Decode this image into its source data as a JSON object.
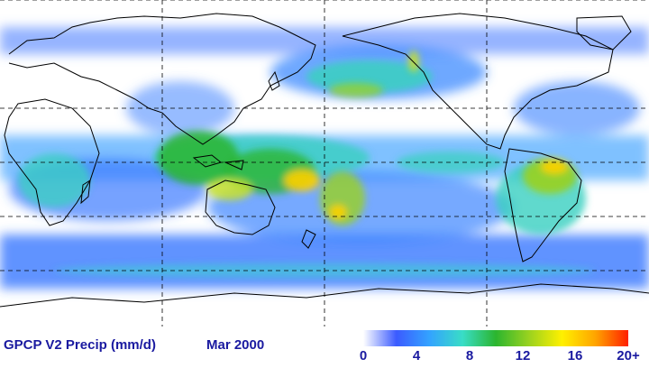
{
  "title": "GPCP V2 Precip (mm/d)",
  "date": "Mar 2000",
  "colorbar": {
    "ticks": [
      "0",
      "4",
      "8",
      "12",
      "16",
      "20+"
    ],
    "stops": [
      "#ffffff",
      "#3b5bff",
      "#33a3ff",
      "#39ddc6",
      "#2bb52f",
      "#9ad21f",
      "#fff000",
      "#ffa500",
      "#ff2000"
    ]
  },
  "colors": {
    "text": "#1a1aa0",
    "coast": "#000000",
    "grid": "#000000"
  }
}
